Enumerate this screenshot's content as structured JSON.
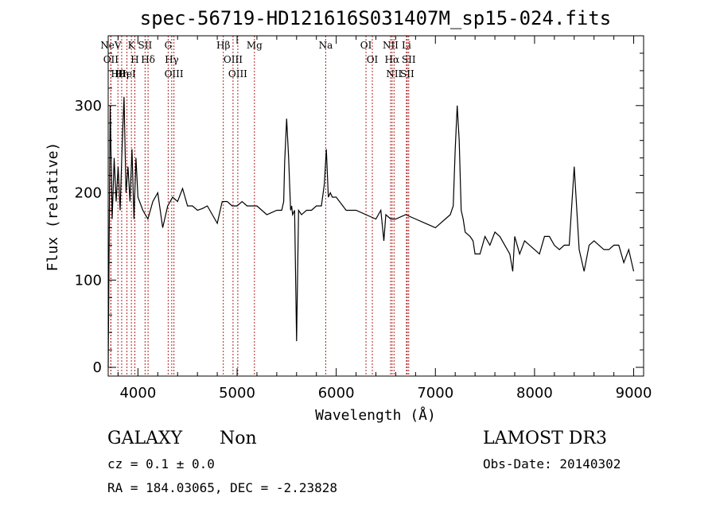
{
  "chart_data": {
    "type": "line",
    "title": "spec-56719-HD121616S031407M_sp15-024.fits",
    "xlabel": "Wavelength (Å)",
    "ylabel": "Flux (relative)",
    "xlim": [
      3700,
      9100
    ],
    "ylim": [
      -10,
      380
    ],
    "xticks": [
      4000,
      5000,
      6000,
      7000,
      8000,
      9000
    ],
    "yticks": [
      0,
      100,
      200,
      300
    ],
    "grid": false,
    "legend": "none",
    "line_color": "#000000",
    "marker_color": "#b22222",
    "spectral_lines": [
      {
        "name": "NeV",
        "x": 3727
      },
      {
        "name": "OII",
        "x": 3727
      },
      {
        "name": "Hθ",
        "x": 3798
      },
      {
        "name": "Hη",
        "x": 3836
      },
      {
        "name": "HeI",
        "x": 3889
      },
      {
        "name": "K",
        "x": 3934
      },
      {
        "name": "H",
        "x": 3969
      },
      {
        "name": "Hδ",
        "x": 4102
      },
      {
        "name": "SII",
        "x": 4072
      },
      {
        "name": "Hγ",
        "x": 4341
      },
      {
        "name": "G",
        "x": 4305
      },
      {
        "name": "OIII",
        "x": 4363
      },
      {
        "name": "Hβ",
        "x": 4861
      },
      {
        "name": "OIII",
        "x": 4959
      },
      {
        "name": "OIII",
        "x": 5007
      },
      {
        "name": "Mg",
        "x": 5175
      },
      {
        "name": "Na",
        "x": 5894
      },
      {
        "name": "OI",
        "x": 6300
      },
      {
        "name": "OI",
        "x": 6364
      },
      {
        "name": "NII",
        "x": 6548
      },
      {
        "name": "Hα",
        "x": 6563
      },
      {
        "name": "NII",
        "x": 6583
      },
      {
        "name": "Li",
        "x": 6708
      },
      {
        "name": "SII",
        "x": 6716
      },
      {
        "name": "SII",
        "x": 6731
      }
    ],
    "series": [
      {
        "x": [
          3700,
          3720,
          3740,
          3760,
          3780,
          3800,
          3820,
          3840,
          3860,
          3880,
          3900,
          3920,
          3940,
          3960,
          3980,
          4000,
          4050,
          4100,
          4150,
          4200,
          4250,
          4300,
          4350,
          4400,
          4450,
          4500,
          4550,
          4600,
          4650,
          4700,
          4750,
          4800,
          4850,
          4900,
          4950,
          5000,
          5050,
          5100,
          5150,
          5200,
          5300,
          5400,
          5450,
          5470,
          5480,
          5500,
          5520,
          5540,
          5550,
          5560,
          5580,
          5600,
          5620,
          5650,
          5700,
          5750,
          5800,
          5850,
          5880,
          5900,
          5920,
          5940,
          5960,
          6000,
          6100,
          6200,
          6300,
          6400,
          6450,
          6480,
          6500,
          6550,
          6600,
          6700,
          6800,
          6900,
          7000,
          7050,
          7100,
          7150,
          7180,
          7200,
          7220,
          7240,
          7260,
          7280,
          7300,
          7350,
          7380,
          7400,
          7450,
          7500,
          7550,
          7600,
          7650,
          7700,
          7750,
          7780,
          7800,
          7850,
          7900,
          7950,
          8000,
          8050,
          8100,
          8150,
          8200,
          8250,
          8300,
          8350,
          8400,
          8450,
          8500,
          8550,
          8600,
          8650,
          8700,
          8750,
          8800,
          8850,
          8900,
          8950,
          9000
        ],
        "y": [
          0,
          300,
          170,
          240,
          190,
          230,
          180,
          250,
          310,
          200,
          230,
          190,
          250,
          170,
          240,
          195,
          180,
          170,
          190,
          200,
          160,
          185,
          195,
          190,
          205,
          185,
          185,
          180,
          182,
          185,
          175,
          165,
          190,
          190,
          185,
          185,
          190,
          185,
          185,
          185,
          175,
          180,
          180,
          190,
          235,
          285,
          240,
          180,
          185,
          175,
          180,
          30,
          180,
          175,
          180,
          180,
          185,
          185,
          210,
          250,
          195,
          200,
          195,
          195,
          180,
          180,
          175,
          170,
          180,
          145,
          175,
          170,
          170,
          175,
          170,
          165,
          160,
          165,
          170,
          175,
          185,
          250,
          300,
          260,
          180,
          170,
          155,
          150,
          145,
          130,
          130,
          150,
          140,
          155,
          150,
          140,
          130,
          110,
          150,
          130,
          145,
          140,
          135,
          130,
          150,
          150,
          140,
          135,
          140,
          140,
          230,
          135,
          110,
          140,
          145,
          140,
          135,
          135,
          140,
          140,
          120,
          135,
          110
        ]
      }
    ]
  },
  "info": {
    "class": "GALAXY",
    "subclass": "Non",
    "survey": "LAMOST DR3",
    "cz": "cz = 0.1  ± 0.0",
    "obs_date": "Obs-Date: 20140302",
    "radec": "RA = 184.03065, DEC =  -2.23828"
  }
}
